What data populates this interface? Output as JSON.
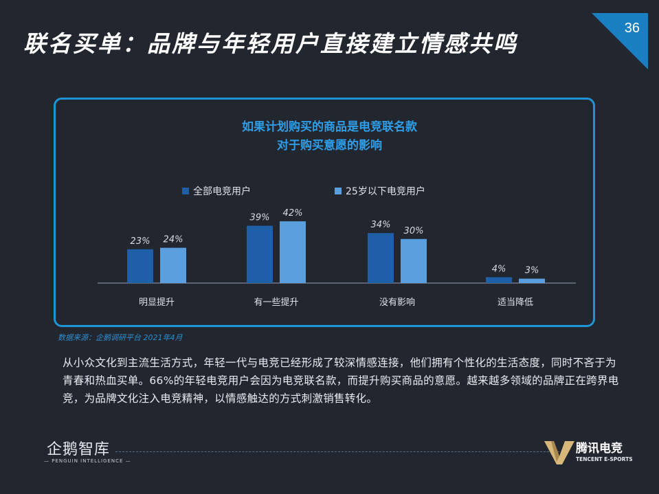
{
  "page": {
    "number": "36",
    "title": "联名买单：品牌与年轻用户直接建立情感共鸣"
  },
  "chart_data": {
    "type": "bar",
    "title_lines": [
      "如果计划购买的商品是电竞联名款",
      "对于购买意愿的影响"
    ],
    "categories": [
      "明显提升",
      "有一些提升",
      "没有影响",
      "适当降低"
    ],
    "series": [
      {
        "name": "全部电竞用户",
        "values": [
          23,
          39,
          34,
          4
        ],
        "color": "#1f5fa7"
      },
      {
        "name": "25岁以下电竞用户",
        "values": [
          24,
          42,
          30,
          3
        ],
        "color": "#5b9fdf"
      }
    ],
    "value_suffix": "%",
    "legend_position": "top-center",
    "ylim": [
      0,
      42
    ],
    "grid": false
  },
  "source": "数据来源：企鹅调研平台 2021年4月",
  "body_text": "从小众文化到主流生活方式，年轻一代与电竞已经形成了较深情感连接，他们拥有个性化的生活态度，同时不吝于为青春和热血买单。66%的年轻电竞用户会因为电竞联名款，而提升购买商品的意愿。越来越多领域的品牌正在跨界电竞，为品牌文化注入电竞精神，以情感触达的方式刺激销售转化。",
  "footer": {
    "left_logo_main": "企鹅智库",
    "left_logo_sub": "— PENGUIN INTELLIGENCE —",
    "right_logo_main": "腾讯电竞",
    "right_logo_sub": "TENCENT E-SPORTS"
  },
  "colors": {
    "background": "#22262f",
    "accent": "#1f95d6",
    "series_1": "#1f5fa7",
    "series_2": "#5b9fdf"
  }
}
